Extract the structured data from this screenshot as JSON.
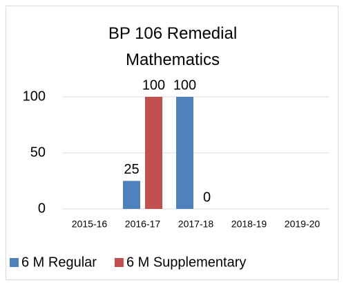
{
  "chart_data": {
    "type": "bar",
    "title": "BP 106 Remedial Mathematics",
    "categories": [
      "2015-16",
      "2016-17",
      "2017-18",
      "2018-19",
      "2019-20"
    ],
    "series": [
      {
        "name": "6 M Regular",
        "color": "#4f81bd",
        "values": [
          null,
          25,
          100,
          null,
          null
        ]
      },
      {
        "name": "6 M Supplementary",
        "color": "#c0504d",
        "values": [
          null,
          100,
          0,
          null,
          null
        ]
      }
    ],
    "ylim": [
      0,
      100
    ],
    "yticks": [
      0,
      50,
      100
    ],
    "grid": true,
    "legend": "bottom"
  }
}
